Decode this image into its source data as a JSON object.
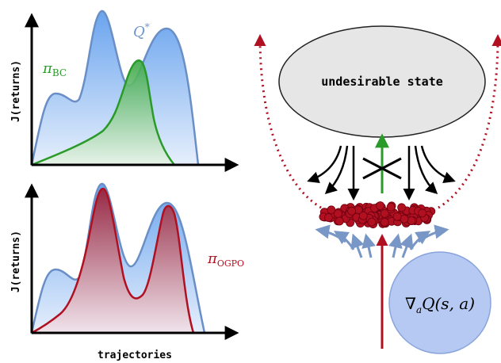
{
  "top_panel": {
    "y_axis_label": "J(returns)",
    "q_star_label": "Q",
    "q_star_sup": "*",
    "pi_bc_symbol": "π",
    "pi_bc_sub": "BC"
  },
  "bottom_panel": {
    "y_axis_label": "J(returns)",
    "x_axis_label": "trajectories",
    "pi_ogpo_symbol": "π",
    "pi_ogpo_sub": "OGPO"
  },
  "right_diagram": {
    "undesirable_state_label": "undesirable state",
    "gradient_circle_label": "∇",
    "gradient_sub": "a",
    "gradient_rest": "Q(s, a)"
  },
  "colors": {
    "q_fill": "#7fb0f0",
    "q_stroke": "#6a8fc7",
    "bc_green": "#2a9a2a",
    "ogpo_red": "#b01020",
    "ellipse_fill": "#e6e6e6",
    "circle_fill": "#b6c9f2",
    "gradient_arrows": "#7896c6"
  }
}
